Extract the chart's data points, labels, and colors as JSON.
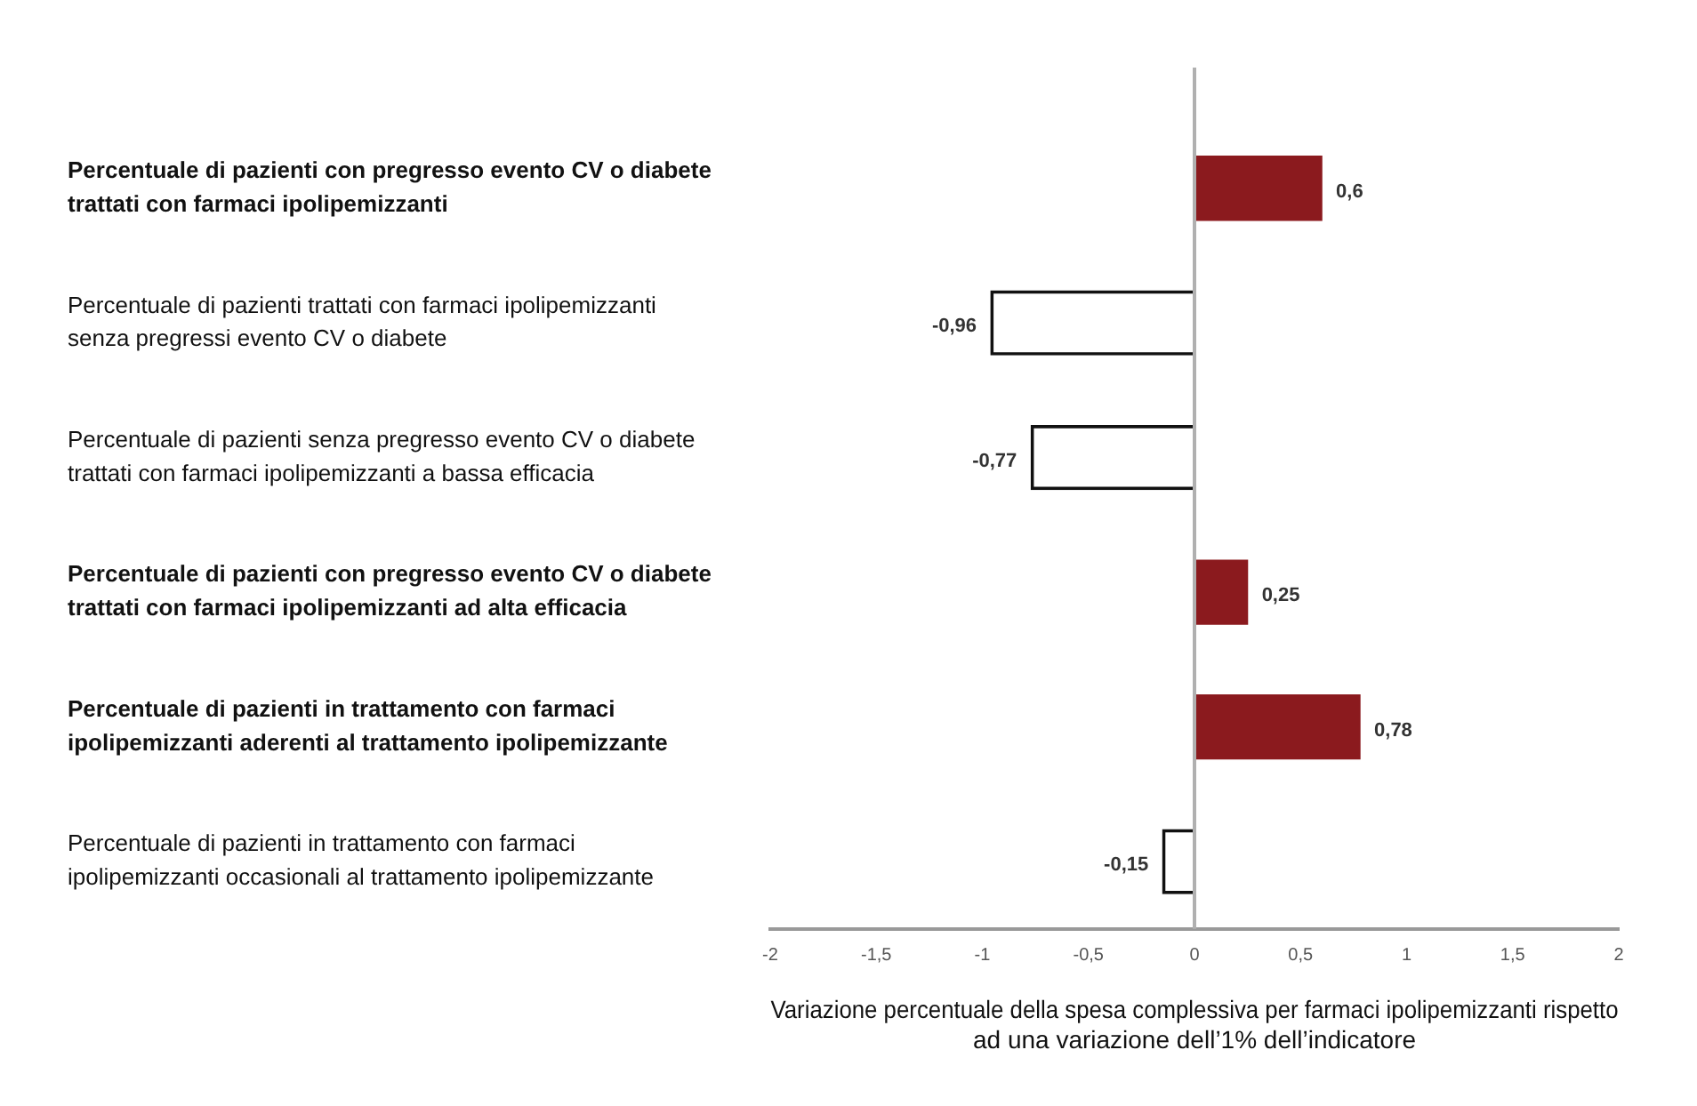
{
  "chart_data": {
    "type": "bar",
    "orientation": "horizontal",
    "xlabel": "Variazione percentuale della spesa complessiva per farmaci ipolipemizzanti rispetto ad una variazione dell’1% dell’indicatore",
    "categories": [
      "Percentuale di pazienti con pregresso evento CV o diabete trattati con farmaci ipolipemizzanti",
      "Percentuale di pazienti trattati con farmaci ipolipemizzanti senza pregressi evento CV o diabete",
      "Percentuale di pazienti senza pregresso evento CV o diabete trattati con farmaci ipolipemizzanti a bassa efficacia",
      "Percentuale di pazienti con pregresso evento CV o diabete trattati con farmaci ipolipemizzanti ad alta efficacia",
      "Percentuale di pazienti in trattamento con farmaci ipolipemizzanti aderenti al trattamento ipolipemizzante",
      "Percentuale di pazienti in trattamento con farmaci ipolipemizzanti occasionali al trattamento ipolipemizzante"
    ],
    "values": [
      0.6,
      -0.96,
      -0.77,
      0.25,
      0.78,
      -0.15
    ],
    "value_labels": [
      "0,6",
      "-0,96",
      "-0,77",
      "0,25",
      "0,78",
      "-0,15"
    ],
    "colors": [
      "#8b1a1e",
      "#111111",
      "#111111",
      "#8b1a1e",
      "#8b1a1e",
      "#111111"
    ],
    "xlim": [
      -2,
      2
    ],
    "xticks": [
      -2,
      {
        "value": -1.5,
        "label": "-1,5"
      },
      -1,
      {
        "value": -0.5,
        "label": "-0,5"
      },
      0,
      {
        "value": 0.5,
        "label": "0,5"
      },
      1,
      {
        "value": 1.5,
        "label": "1,5"
      },
      2
    ],
    "ref_lines": [
      {
        "axis": "x",
        "value": 0,
        "color": "#b0b0b0"
      }
    ],
    "grid": false,
    "legend": false
  }
}
